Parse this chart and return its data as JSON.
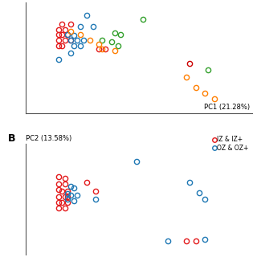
{
  "panel_A": {
    "red_points": [
      [
        -0.42,
        0.76
      ],
      [
        -0.36,
        0.76
      ],
      [
        -0.44,
        0.68
      ],
      [
        -0.4,
        0.68
      ],
      [
        -0.44,
        0.62
      ],
      [
        -0.42,
        0.62
      ],
      [
        -0.38,
        0.62
      ],
      [
        -0.44,
        0.54
      ],
      [
        -0.4,
        0.54
      ],
      [
        -0.36,
        0.54
      ],
      [
        -0.44,
        0.46
      ],
      [
        -0.42,
        0.46
      ],
      [
        -0.18,
        0.42
      ],
      [
        -0.14,
        0.42
      ]
    ],
    "blue_points": [
      [
        -0.26,
        0.88
      ],
      [
        -0.3,
        0.72
      ],
      [
        -0.22,
        0.72
      ],
      [
        -0.38,
        0.62
      ],
      [
        -0.34,
        0.6
      ],
      [
        -0.36,
        0.54
      ],
      [
        -0.32,
        0.54
      ],
      [
        -0.28,
        0.54
      ],
      [
        -0.34,
        0.46
      ],
      [
        -0.3,
        0.46
      ],
      [
        -0.36,
        0.36
      ],
      [
        -0.44,
        0.28
      ]
    ],
    "green_points": [
      [
        0.1,
        0.82
      ],
      [
        -0.08,
        0.64
      ],
      [
        -0.04,
        0.62
      ],
      [
        -0.16,
        0.54
      ],
      [
        -0.1,
        0.52
      ],
      [
        -0.06,
        0.46
      ],
      [
        0.52,
        0.14
      ]
    ],
    "orange_points": [
      [
        -0.36,
        0.66
      ],
      [
        -0.3,
        0.62
      ],
      [
        -0.24,
        0.54
      ],
      [
        -0.18,
        0.48
      ],
      [
        -0.16,
        0.42
      ],
      [
        -0.08,
        0.4
      ],
      [
        0.38,
        0.04
      ],
      [
        0.44,
        -0.1
      ],
      [
        0.5,
        -0.18
      ],
      [
        0.56,
        -0.26
      ]
    ],
    "dark_red_point": [
      [
        0.4,
        0.22
      ]
    ],
    "xlabel": "PC1 (21.28%)",
    "xlim": [
      -0.65,
      0.8
    ],
    "ylim": [
      -0.45,
      1.05
    ]
  },
  "panel_B": {
    "red_points": [
      [
        -0.44,
        0.54
      ],
      [
        -0.4,
        0.52
      ],
      [
        -0.44,
        0.44
      ],
      [
        -0.4,
        0.44
      ],
      [
        -0.44,
        0.36
      ],
      [
        -0.42,
        0.34
      ],
      [
        -0.38,
        0.34
      ],
      [
        -0.44,
        0.26
      ],
      [
        -0.4,
        0.26
      ],
      [
        -0.38,
        0.26
      ],
      [
        -0.44,
        0.18
      ],
      [
        -0.42,
        0.18
      ],
      [
        -0.38,
        0.18
      ],
      [
        -0.44,
        0.1
      ],
      [
        -0.4,
        0.1
      ],
      [
        -0.26,
        0.46
      ],
      [
        -0.2,
        0.34
      ],
      [
        0.38,
        -0.36
      ],
      [
        0.44,
        -0.36
      ]
    ],
    "blue_points": [
      [
        -0.36,
        0.4
      ],
      [
        -0.34,
        0.38
      ],
      [
        -0.38,
        0.3
      ],
      [
        -0.36,
        0.28
      ],
      [
        -0.32,
        0.28
      ],
      [
        -0.38,
        0.22
      ],
      [
        -0.34,
        0.2
      ],
      [
        -0.2,
        0.22
      ],
      [
        0.06,
        0.76
      ],
      [
        0.4,
        0.46
      ],
      [
        0.46,
        0.32
      ],
      [
        0.5,
        0.22
      ],
      [
        0.26,
        -0.36
      ],
      [
        0.5,
        -0.34
      ]
    ],
    "ylabel": "PC2 (13.58%)",
    "legend_red": "IZ & IZ+",
    "legend_blue": "OZ & OZ+",
    "panel_label": "B",
    "xlim": [
      -0.65,
      0.8
    ],
    "ylim": [
      -0.55,
      1.0
    ]
  },
  "colors": {
    "red": "#e31a1c",
    "blue": "#1f78b4",
    "green": "#33a02c",
    "orange": "#ff7f00",
    "dark_red": "#cc0000"
  }
}
